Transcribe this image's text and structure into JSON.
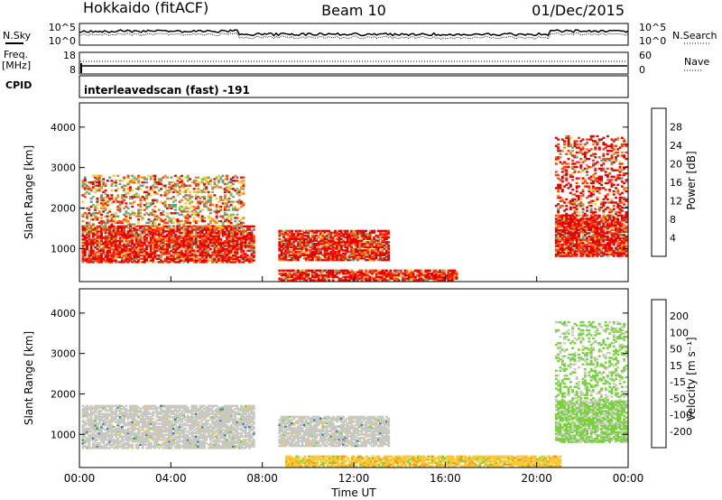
{
  "header": {
    "radar": "Hokkaido (fitACF)",
    "beam": "Beam 10",
    "date": "01/Dec/2015"
  },
  "top_panels": {
    "nsky_label": "N.Sky",
    "nsearch_label": "N.Search",
    "count_ticks_left": [
      "10^5",
      "10^0"
    ],
    "count_ticks_right": [
      "10^5",
      "10^0"
    ],
    "freq_label_1": "Freq.",
    "freq_label_2": "[MHz]",
    "freq_ticks": [
      "18",
      "8"
    ],
    "nave_label": "Nave",
    "nave_ticks": [
      "60",
      "0"
    ],
    "cpid_label": "CPID",
    "cpid_text": "interleavedscan (fast) -191"
  },
  "colors": {
    "velocity_gray": "#c8c8c0"
  },
  "chart_data": [
    {
      "type": "heatmap",
      "title": "",
      "ylabel": "Slant Range [km]",
      "ylim": [
        180,
        4600
      ],
      "yticks": [
        "1000",
        "2000",
        "3000",
        "4000"
      ],
      "xlim": [
        "00:00",
        "24:00"
      ],
      "colorbar_label": "Power [dB]",
      "colorbar_ticks": [
        "4",
        "8",
        "12",
        "16",
        "20",
        "24",
        "28"
      ],
      "colorbar_colors": [
        "#1e28ff",
        "#3c6edc",
        "#5aa096",
        "#78b85a",
        "#ffc832",
        "#ff8214",
        "#ff3c0a",
        "#e60000"
      ],
      "regions": [
        {
          "t0": 0.1,
          "t1": 7.6,
          "r0": 650,
          "r1": 1550,
          "level": "high"
        },
        {
          "t0": 0.1,
          "t1": 7.2,
          "r0": 1500,
          "r1": 2800,
          "level": "mixed"
        },
        {
          "t0": 8.7,
          "t1": 13.5,
          "r0": 700,
          "r1": 1450,
          "level": "high"
        },
        {
          "t0": 8.7,
          "t1": 16.5,
          "r0": 200,
          "r1": 450,
          "level": "high"
        },
        {
          "t0": 20.8,
          "t1": 23.9,
          "r0": 800,
          "r1": 3800,
          "level": "high"
        }
      ]
    },
    {
      "type": "heatmap",
      "title": "",
      "ylabel": "Slant Range [km]",
      "xlabel": "Time UT",
      "ylim": [
        180,
        4600
      ],
      "yticks": [
        "1000",
        "2000",
        "3000",
        "4000"
      ],
      "xticks": [
        "00:00",
        "04:00",
        "08:00",
        "12:00",
        "16:00",
        "20:00",
        "00:00"
      ],
      "colorbar_label": "Velocity [m s⁻¹]",
      "colorbar_ticks": [
        "200",
        "100",
        "50",
        "15",
        "-15",
        "-50",
        "-100",
        "-200"
      ],
      "colorbar_colors": [
        "#1e28c8",
        "#3c78b4",
        "#46a050",
        "#78d23c",
        "#c8c8c0",
        "#ffc832",
        "#ff9614",
        "#ff5a0a",
        "#e60000"
      ],
      "regions": [
        {
          "t0": 0.1,
          "t1": 7.6,
          "r0": 650,
          "r1": 1700,
          "level": "near-zero"
        },
        {
          "t0": 8.7,
          "t1": 13.5,
          "r0": 700,
          "r1": 1450,
          "level": "near-zero"
        },
        {
          "t0": 9.0,
          "t1": 21.0,
          "r0": 200,
          "r1": 450,
          "level": "negative"
        },
        {
          "t0": 20.8,
          "t1": 23.9,
          "r0": 800,
          "r1": 3800,
          "level": "positive"
        }
      ]
    }
  ]
}
